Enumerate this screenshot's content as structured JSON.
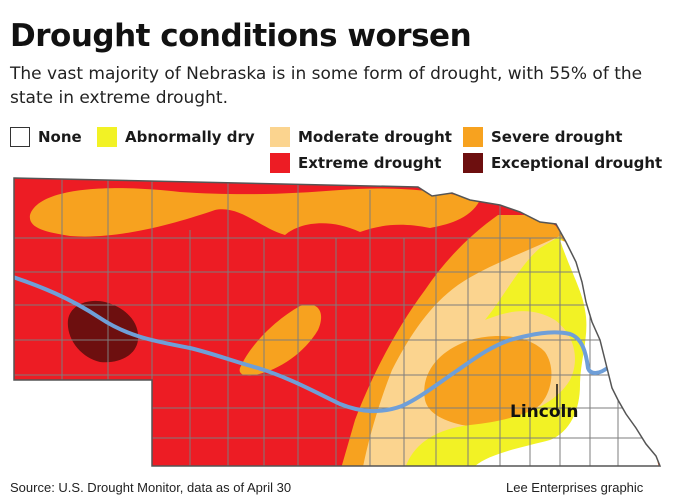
{
  "title": "Drought conditions worsen",
  "subtitle": "The vast majority of Nebraska is in some form of drought, with 55% of the state in extreme drought.",
  "legend": [
    {
      "label": "None",
      "color": "#ffffff"
    },
    {
      "label": "Abnormally dry",
      "color": "#f2f225"
    },
    {
      "label": "Moderate drought",
      "color": "#fbd48f"
    },
    {
      "label": "Severe drought",
      "color": "#f7a21f"
    },
    {
      "label": "Extreme drought",
      "color": "#ed1c24"
    },
    {
      "label": "Exceptional drought",
      "color": "#6d0f0f"
    }
  ],
  "map": {
    "city_label": "Lincoln",
    "river_color": "#6f9fd8",
    "county_line_color": "#7d7d7d"
  },
  "footer": {
    "source": "Source: U.S. Drought Monitor, data as of April 30",
    "credit": "Lee Enterprises graphic"
  }
}
